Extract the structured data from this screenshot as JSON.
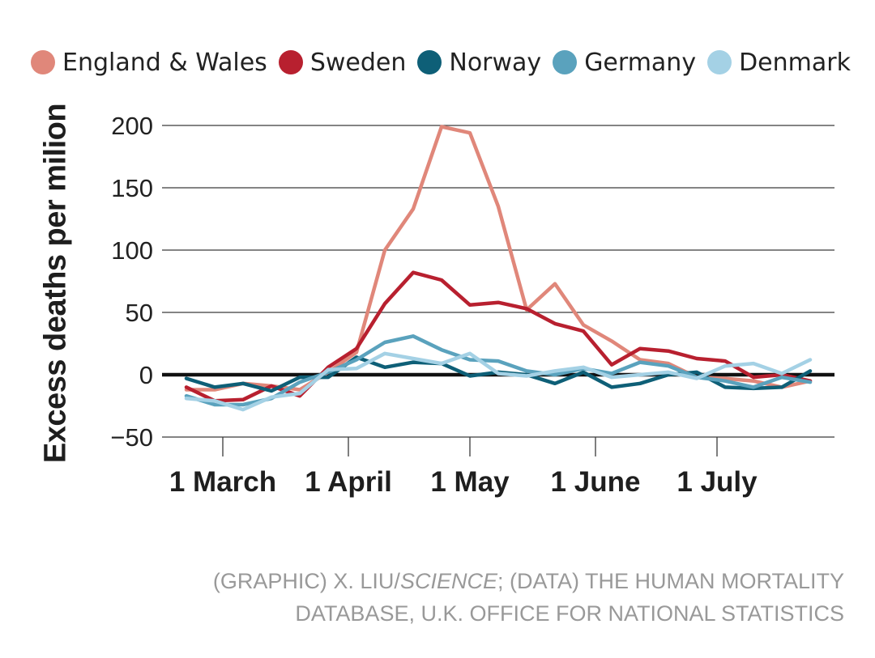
{
  "chart_data": {
    "type": "line",
    "ylabel": "Excess deaths per milion",
    "ylim": [
      -50,
      200
    ],
    "yticks": [
      -50,
      0,
      50,
      100,
      150,
      200
    ],
    "ytick_labels": [
      "−50",
      "0",
      "50",
      "100",
      "150",
      "200"
    ],
    "x_start": "2020-02-15",
    "x_end": "2020-07-30",
    "xticks": [
      {
        "date": "2020-03-01",
        "label": "1 March"
      },
      {
        "date": "2020-04-01",
        "label": "1 April"
      },
      {
        "date": "2020-05-01",
        "label": "1 May"
      },
      {
        "date": "2020-06-01",
        "label": "1 June"
      },
      {
        "date": "2020-07-01",
        "label": "1 July"
      }
    ],
    "x": [
      "2020-02-21",
      "2020-02-28",
      "2020-03-06",
      "2020-03-13",
      "2020-03-20",
      "2020-03-27",
      "2020-04-03",
      "2020-04-10",
      "2020-04-17",
      "2020-04-24",
      "2020-05-01",
      "2020-05-08",
      "2020-05-15",
      "2020-05-22",
      "2020-05-29",
      "2020-06-05",
      "2020-06-12",
      "2020-06-19",
      "2020-06-26",
      "2020-07-03",
      "2020-07-10",
      "2020-07-17",
      "2020-07-24"
    ],
    "grid": true,
    "legend_position": "top",
    "series": [
      {
        "name": "England & Wales",
        "color": "#e0877a",
        "values": [
          -12,
          -12,
          -7,
          -9,
          -12,
          2,
          18,
          100,
          133,
          199,
          194,
          135,
          52,
          73,
          40,
          27,
          12,
          9,
          -2,
          -3,
          -5,
          -10,
          -5
        ]
      },
      {
        "name": "Sweden",
        "color": "#b8202f",
        "values": [
          -10,
          -21,
          -20,
          -9,
          -17,
          6,
          21,
          57,
          82,
          76,
          56,
          58,
          53,
          41,
          35,
          8,
          21,
          19,
          13,
          11,
          -2,
          0,
          -5
        ]
      },
      {
        "name": "Norway",
        "color": "#0e5f77",
        "values": [
          -3,
          -10,
          -7,
          -13,
          -2,
          -2,
          14,
          6,
          10,
          9,
          -1,
          2,
          0,
          -7,
          2,
          -10,
          -7,
          0,
          2,
          -10,
          -11,
          -10,
          3
        ]
      },
      {
        "name": "Germany",
        "color": "#5aa2bd",
        "values": [
          -17,
          -24,
          -24,
          -19,
          -6,
          2,
          12,
          26,
          31,
          20,
          12,
          11,
          3,
          0,
          5,
          1,
          10,
          7,
          -2,
          -5,
          -10,
          -2,
          -6
        ]
      },
      {
        "name": "Denmark",
        "color": "#a4d1e5",
        "values": [
          -19,
          -21,
          -28,
          -18,
          -15,
          4,
          5,
          17,
          13,
          9,
          17,
          1,
          -1,
          3,
          6,
          -2,
          0,
          2,
          -3,
          7,
          9,
          1,
          12
        ]
      }
    ]
  },
  "credit": {
    "line1_pre": "(GRAPHIC) X. LIU/",
    "line1_italic": "SCIENCE",
    "line1_post": "; (DATA) THE HUMAN MORTALITY",
    "line2": "DATABASE, U.K. OFFICE FOR NATIONAL STATISTICS"
  }
}
